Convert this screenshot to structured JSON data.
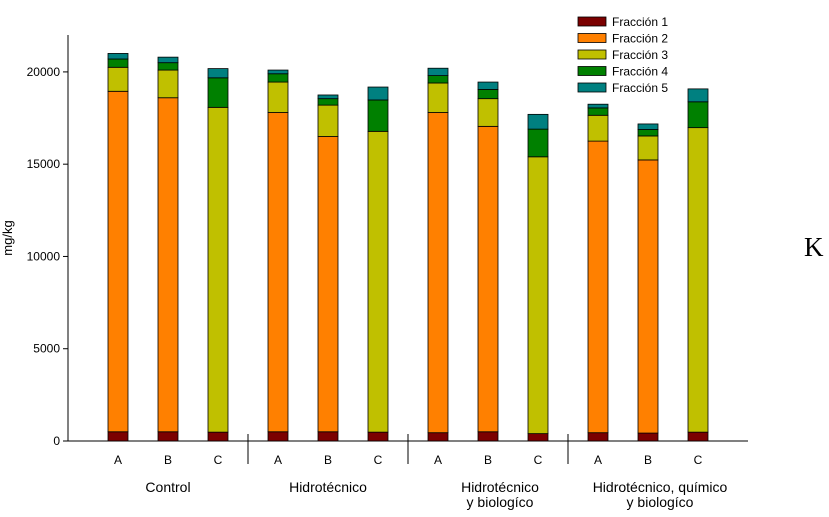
{
  "chart_data": {
    "type": "stacked-bar",
    "ylabel": "mg/kg",
    "ylim": [
      0,
      22000
    ],
    "yticks": [
      0,
      5000,
      10000,
      15000,
      20000
    ],
    "legend_position": "top-right",
    "groups": [
      {
        "label_lines": [
          "Control"
        ],
        "bars": [
          "A",
          "B",
          "C"
        ]
      },
      {
        "label_lines": [
          "Hidrotécnico"
        ],
        "bars": [
          "A",
          "B",
          "C"
        ]
      },
      {
        "label_lines": [
          "Hidrotécnico",
          "y biologíco"
        ],
        "bars": [
          "A",
          "B",
          "C"
        ]
      },
      {
        "label_lines": [
          "Hidrotécnico, químico",
          "y biologíco"
        ],
        "bars": [
          "A",
          "B",
          "C"
        ]
      }
    ],
    "series": [
      {
        "name": "Fracción 1",
        "color": "#7b0000",
        "values": [
          500,
          500,
          480,
          500,
          500,
          480,
          450,
          500,
          400,
          450,
          430,
          480
        ]
      },
      {
        "name": "Fracción 2",
        "color": "#ff8000",
        "values": [
          18450,
          18100,
          0,
          17300,
          16000,
          0,
          17350,
          16550,
          0,
          15800,
          14800,
          0
        ]
      },
      {
        "name": "Fracción 3",
        "color": "#c0c000",
        "values": [
          1300,
          1500,
          17600,
          1650,
          1700,
          16300,
          1600,
          1500,
          15000,
          1400,
          1300,
          16500
        ]
      },
      {
        "name": "Fracción 4",
        "color": "#008000",
        "values": [
          450,
          400,
          1600,
          450,
          350,
          1700,
          400,
          500,
          1500,
          400,
          350,
          1400
        ]
      },
      {
        "name": "Fracción 5",
        "color": "#008080",
        "values": [
          300,
          300,
          500,
          200,
          200,
          700,
          400,
          400,
          800,
          200,
          300,
          700
        ]
      }
    ]
  },
  "side_letter": "K"
}
